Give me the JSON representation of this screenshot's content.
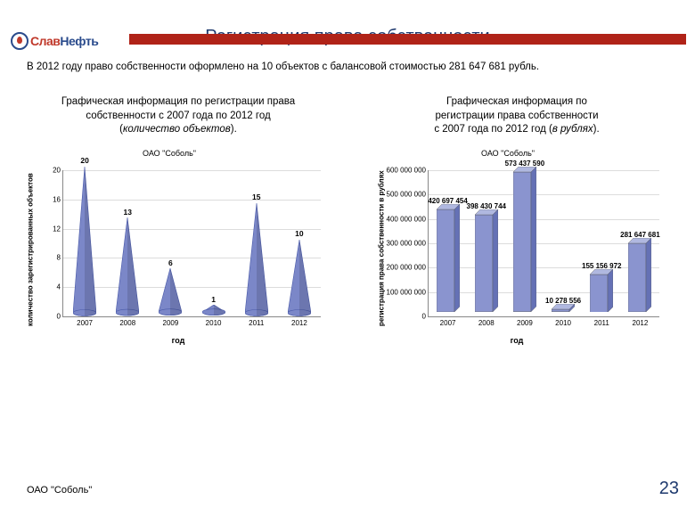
{
  "brand": {
    "text_red": "Слав",
    "text_blue": "Нефть"
  },
  "header_bar_color": "#b02318",
  "title": {
    "text": "Регистрация права собственности",
    "color": "#1f3a6e"
  },
  "subtitle": "В 2012 году право собственности оформлено на 10 объектов с балансовой стоимостью 281 647 681 рубль.",
  "chart1": {
    "caption_line1": "Графическая информация по регистрации права",
    "caption_line2": "собственности с 2007 года по 2012 год",
    "caption_line3_prefix": "(",
    "caption_line3_italic": "количество объектов",
    "caption_line3_suffix": ").",
    "legend_title": "ОАО \"Соболь\"",
    "type": "cone",
    "y_label": "количество зарегистрированных объектов",
    "x_label": "год",
    "categories": [
      "2007",
      "2008",
      "2009",
      "2010",
      "2011",
      "2012"
    ],
    "values": [
      20,
      13,
      6,
      1,
      15,
      10
    ],
    "ylim": [
      0,
      20
    ],
    "ytick_step": 4,
    "cone_fill": "#7b87c8",
    "cone_edge": "#4a5aa8",
    "grid_color": "#dcdcdc",
    "label_font_size": 8.5
  },
  "chart2": {
    "caption_line1": "Графическая информация по",
    "caption_line2": "регистрации права собственности",
    "caption_line3_prefix": "с 2007 года по 2012 год (",
    "caption_line3_italic": "в рублях",
    "caption_line3_suffix": ").",
    "legend_title": "ОАО \"Соболь\"",
    "type": "bar3d",
    "y_label": "регистрация права собственности в рублях",
    "x_label": "год",
    "categories": [
      "2007",
      "2008",
      "2009",
      "2010",
      "2011",
      "2012"
    ],
    "values": [
      420697454,
      398430744,
      573437590,
      10278556,
      155156972,
      281647681
    ],
    "value_labels": [
      "420 697 454",
      "398 430 744",
      "573 437 590",
      "10 278 556",
      "155 156 972",
      "281 647 681"
    ],
    "ylim": [
      0,
      600000000
    ],
    "ytick_step": 100000000,
    "ytick_labels": [
      "0",
      "100 000 000",
      "200 000 000",
      "300 000 000",
      "400 000 000",
      "500 000 000",
      "600 000 000"
    ],
    "bar_fill": "#8a94cf",
    "bar_side": "#6571b5",
    "bar_top": "#b0b8e0",
    "grid_color": "#dcdcdc",
    "label_font_size": 8
  },
  "footer": {
    "company": "ОАО \"Соболь\"",
    "page": "23",
    "page_color": "#1f3a6e"
  }
}
